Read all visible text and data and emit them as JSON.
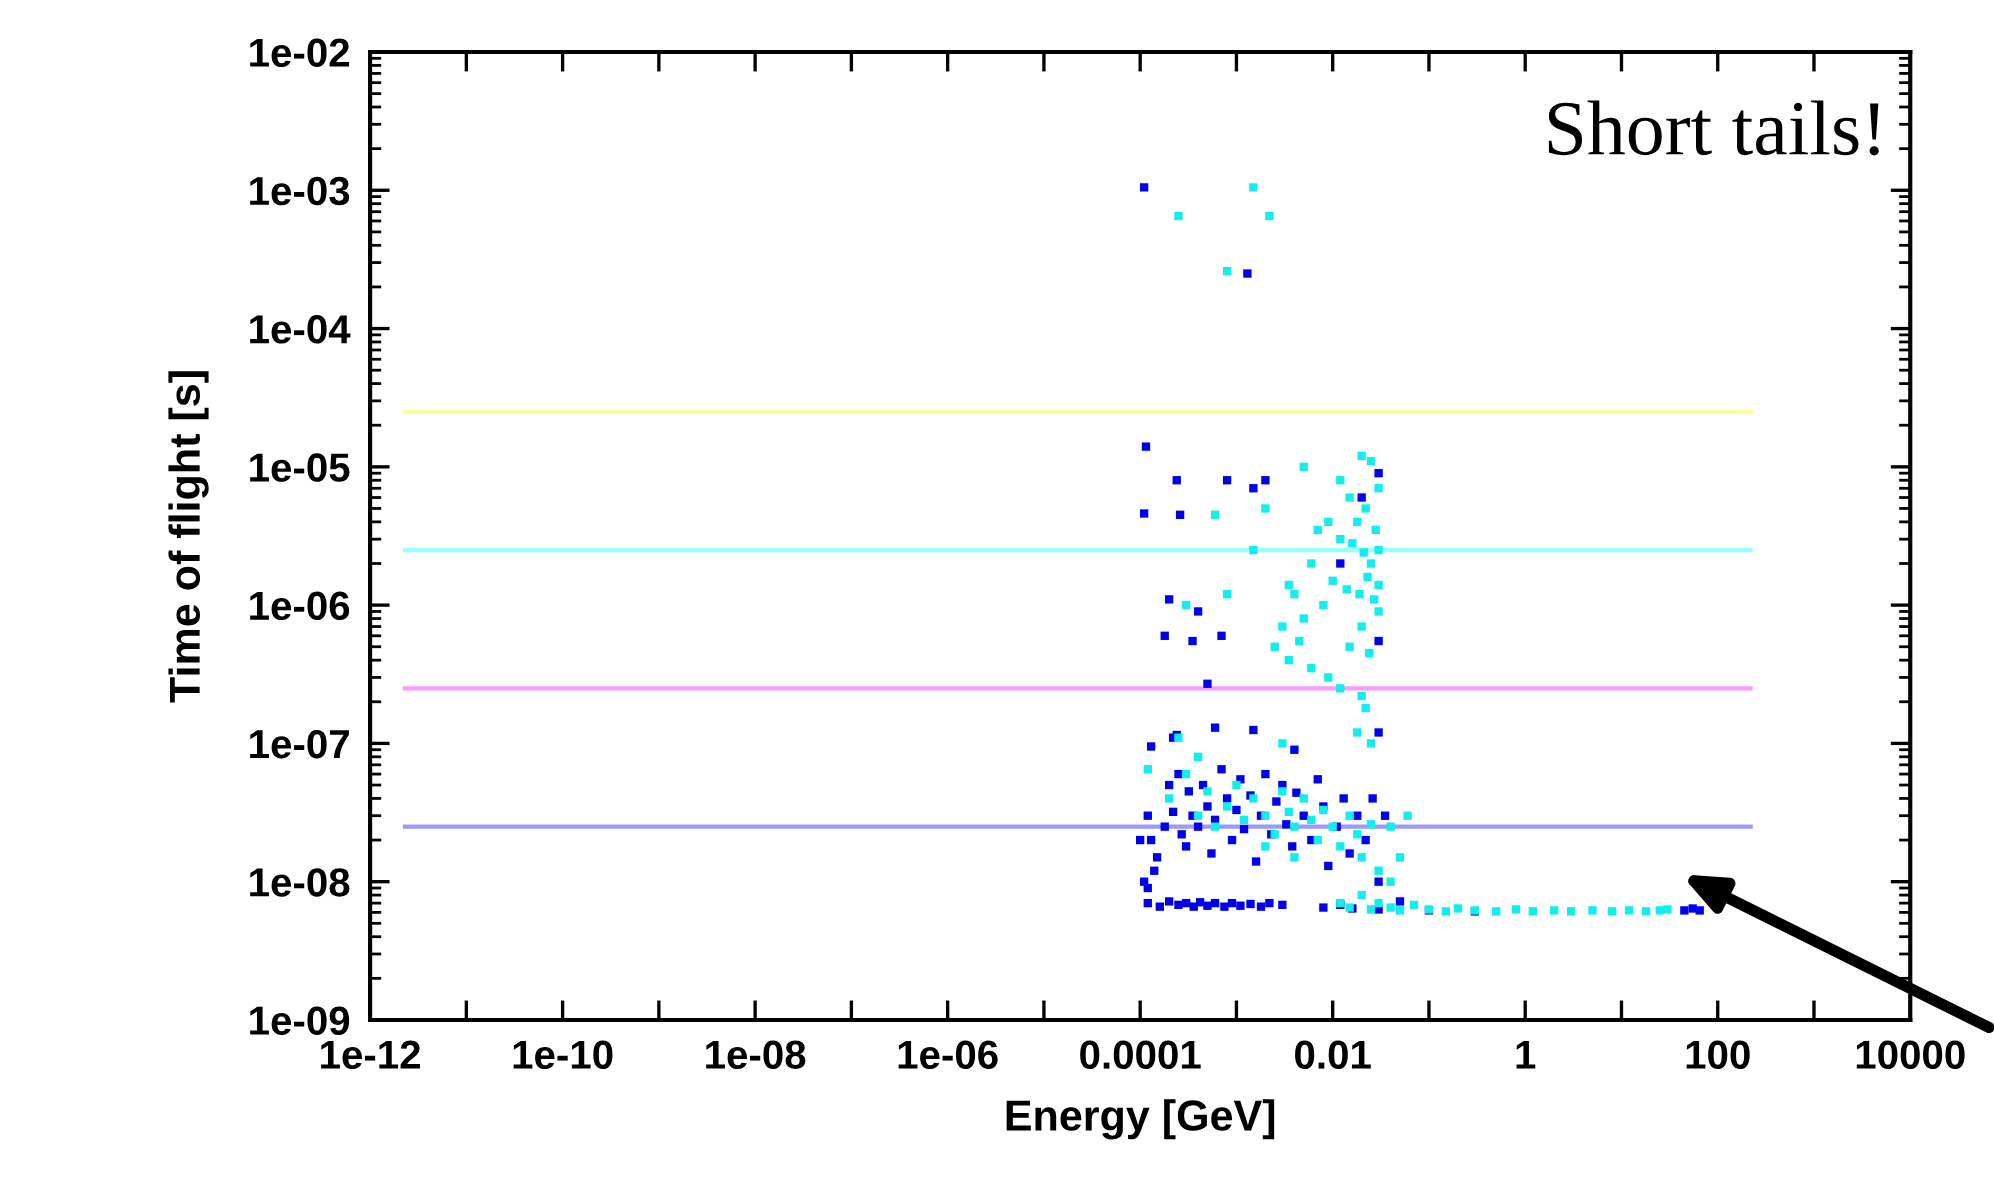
{
  "chart_data": {
    "type": "scatter",
    "xlabel": "Energy [GeV]",
    "ylabel": "Time of flight [s]",
    "log": "xy",
    "grid": false,
    "legend": false,
    "xlim": [
      1e-12,
      10000
    ],
    "ylim": [
      1e-09,
      0.01
    ],
    "xticks": [
      {
        "value": 1e-12,
        "label": "1e-12"
      },
      {
        "value": 1e-11,
        "label": null
      },
      {
        "value": 1e-10,
        "label": "1e-10"
      },
      {
        "value": 1e-09,
        "label": null
      },
      {
        "value": 1e-08,
        "label": "1e-08"
      },
      {
        "value": 1e-07,
        "label": null
      },
      {
        "value": 1e-06,
        "label": "1e-06"
      },
      {
        "value": 1e-05,
        "label": null
      },
      {
        "value": 0.0001,
        "label": "0.0001"
      },
      {
        "value": 0.001,
        "label": null
      },
      {
        "value": 0.01,
        "label": "0.01"
      },
      {
        "value": 0.1,
        "label": null
      },
      {
        "value": 1,
        "label": "1"
      },
      {
        "value": 10,
        "label": null
      },
      {
        "value": 100,
        "label": "100"
      },
      {
        "value": 1000,
        "label": null
      },
      {
        "value": 10000,
        "label": "10000"
      }
    ],
    "yticks": [
      {
        "value": 1e-09,
        "label": "1e-09"
      },
      {
        "value": 1e-08,
        "label": "1e-08"
      },
      {
        "value": 1e-07,
        "label": "1e-07"
      },
      {
        "value": 1e-06,
        "label": "1e-06"
      },
      {
        "value": 1e-05,
        "label": "1e-05"
      },
      {
        "value": 0.0001,
        "label": "1e-04"
      },
      {
        "value": 0.001,
        "label": "1e-03"
      },
      {
        "value": 0.01,
        "label": "1e-02"
      }
    ],
    "annotations": [
      "Short tails!"
    ],
    "series": [
      {
        "type": "line",
        "color": "#ffff99",
        "x": [
          2.3e-12,
          220
        ],
        "values": [
          2.5e-05,
          2.5e-05
        ]
      },
      {
        "type": "line",
        "color": "#99ffff",
        "x": [
          2.3e-12,
          220
        ],
        "values": [
          2.5e-06,
          2.5e-06
        ]
      },
      {
        "type": "line",
        "color": "#ff99ff",
        "x": [
          2.3e-12,
          220
        ],
        "values": [
          2.5e-07,
          2.5e-07
        ]
      },
      {
        "type": "line",
        "color": "#9999ff",
        "x": [
          2.3e-12,
          220
        ],
        "values": [
          2.5e-08,
          2.5e-08
        ]
      },
      {
        "marker": "square",
        "color": "#0000ee",
        "x": [
          0.00011,
          0.0013,
          0.000115,
          0.00011,
          0.00024,
          0.0008,
          0.002,
          0.00026,
          0.0015,
          0.0002,
          0.0004,
          0.00018,
          0.0007,
          0.00035,
          0.0005,
          0.012,
          0.03,
          0.03,
          0.03,
          0.02,
          0.00012,
          0.00013,
          0.00015,
          0.00011,
          0.00012,
          0.00014,
          0.00018,
          0.0002,
          0.00022,
          0.00025,
          0.00027,
          0.0003,
          0.00032,
          0.00035,
          0.0004,
          0.00045,
          0.0005,
          0.00055,
          0.0006,
          0.0007,
          0.0008,
          0.0009,
          0.001,
          0.0011,
          0.0012,
          0.0014,
          0.0016,
          0.0018,
          0.002,
          0.0023,
          0.0026,
          0.003,
          0.0033,
          0.0038,
          0.0042,
          0.005,
          0.006,
          0.007,
          0.008,
          0.009,
          0.011,
          0.013,
          0.015,
          0.018,
          0.022,
          0.026,
          0.03,
          0.035,
          0.00024,
          0.00022,
          0.00013,
          0.0006,
          0.0015,
          0.004,
          0.0001,
          0.00012,
          0.00016,
          0.0002,
          0.00025,
          0.0003,
          0.00036,
          0.00042,
          0.0005,
          0.0006,
          0.00075,
          0.0009,
          0.0011,
          0.0014,
          0.0018,
          0.0022,
          0.003,
          0.008,
          0.012,
          0.016,
          0.03,
          0.05,
          0.1,
          0.3,
          45,
          55,
          65
        ],
        "values": [
          0.00105,
          0.00025,
          1.4e-05,
          4.6e-06,
          8e-06,
          8e-06,
          8e-06,
          4.5e-06,
          7e-06,
          1.1e-06,
          9e-07,
          6e-07,
          6e-07,
          5.5e-07,
          2.7e-07,
          2e-06,
          9e-06,
          5.5e-07,
          1.2e-07,
          6e-06,
          3e-08,
          2e-08,
          1.5e-08,
          1e-08,
          9e-09,
          1.2e-08,
          2.5e-08,
          5e-08,
          3.2e-08,
          6e-08,
          2.2e-08,
          1.8e-08,
          4.5e-08,
          3e-08,
          2.5e-08,
          5e-08,
          3.5e-08,
          1.6e-08,
          2.8e-08,
          6.5e-08,
          4e-08,
          2e-08,
          3.3e-08,
          5.5e-08,
          2.4e-08,
          4.2e-08,
          1.4e-08,
          3e-08,
          6e-08,
          2.2e-08,
          3.8e-08,
          5e-08,
          2.6e-08,
          1.8e-08,
          4.4e-08,
          3e-08,
          2e-08,
          5.5e-08,
          3.5e-08,
          1.3e-08,
          2.5e-08,
          4e-08,
          1.6e-08,
          3e-08,
          2e-08,
          4e-08,
          1e-08,
          3e-08,
          1.15e-07,
          1.1e-07,
          9.5e-08,
          1.3e-07,
          1.25e-07,
          9e-08,
          2e-08,
          7e-09,
          6.6e-09,
          7.2e-09,
          6.8e-09,
          7e-09,
          6.6e-09,
          7.1e-09,
          6.7e-09,
          7e-09,
          6.6e-09,
          7e-09,
          6.7e-09,
          6.9e-09,
          6.6e-09,
          7e-09,
          6.8e-09,
          6.5e-09,
          6.8e-09,
          6.4e-09,
          6.3e-09,
          7.2e-09,
          6.2e-09,
          6.1e-09,
          6.2e-09,
          6.4e-09,
          6.2e-09
        ]
      },
      {
        "marker": "square",
        "color": "#11eeee",
        "x": [
          0.00025,
          0.0015,
          0.0022,
          0.0008,
          0.005,
          0.012,
          0.02,
          0.025,
          0.015,
          0.022,
          0.018,
          0.03,
          0.028,
          0.016,
          0.021,
          0.025,
          0.03,
          0.012,
          0.009,
          0.007,
          0.006,
          0.01,
          0.014,
          0.019,
          0.023,
          0.027,
          0.03,
          0.008,
          0.005,
          0.004,
          0.003,
          0.0025,
          0.0035,
          0.0045,
          0.006,
          0.009,
          0.012,
          0.015,
          0.02,
          0.024,
          0.03,
          0.02,
          0.022,
          0.018,
          0.025,
          0.002,
          0.0015,
          0.0035,
          0.0008,
          0.0003,
          0.0006,
          0.0002,
          0.0003,
          0.0004,
          0.0005,
          0.0006,
          0.0008,
          0.001,
          0.0012,
          0.0015,
          0.002,
          0.0025,
          0.003,
          0.0035,
          0.004,
          0.005,
          0.006,
          0.007,
          0.008,
          0.01,
          0.012,
          0.015,
          0.018,
          0.02,
          0.025,
          0.03,
          0.04,
          0.06,
          0.05,
          0.04,
          0.00025,
          0.0004,
          0.00012,
          0.003,
          0.002,
          0.004,
          0.012,
          0.015,
          0.02,
          0.025,
          0.03,
          0.04,
          0.05,
          0.07,
          0.1,
          0.15,
          0.2,
          0.3,
          0.5,
          0.8,
          1.2,
          2,
          3,
          5,
          8,
          12,
          18,
          25,
          30
        ],
        "values": [
          0.00065,
          0.00105,
          0.00065,
          0.00026,
          1e-05,
          8e-06,
          1.2e-05,
          1.1e-05,
          6e-06,
          5e-06,
          4e-06,
          7e-06,
          3.5e-06,
          2.8e-06,
          2.4e-06,
          2e-06,
          2.5e-06,
          3e-06,
          4e-06,
          3.5e-06,
          2e-06,
          1.5e-06,
          1.3e-06,
          1.2e-06,
          1.6e-06,
          1.1e-06,
          1.4e-06,
          1e-06,
          8e-07,
          1.2e-06,
          7e-07,
          5e-07,
          4e-07,
          5.5e-07,
          3.5e-07,
          3e-07,
          2.5e-07,
          5e-07,
          7e-07,
          4.5e-07,
          9e-07,
          2.2e-07,
          1.8e-07,
          1.2e-07,
          1e-07,
          5e-06,
          2.5e-06,
          1.4e-06,
          1.2e-06,
          1e-06,
          4.5e-06,
          4e-08,
          6e-08,
          3e-08,
          4.5e-08,
          2.5e-08,
          3.5e-08,
          5e-08,
          2.8e-08,
          4e-08,
          3e-08,
          2.2e-08,
          4.5e-08,
          3.2e-08,
          2.5e-08,
          4e-08,
          2.8e-08,
          2e-08,
          3.3e-08,
          2.5e-08,
          1.8e-08,
          3e-08,
          2.2e-08,
          1.5e-08,
          2.6e-08,
          1.2e-08,
          2.5e-08,
          3e-08,
          1.5e-08,
          1e-08,
          1.1e-07,
          8e-08,
          6.5e-08,
          1e-07,
          1.8e-08,
          1.5e-08,
          7e-09,
          6.5e-09,
          8e-09,
          6.3e-09,
          7e-09,
          6.5e-09,
          6.2e-09,
          6.8e-09,
          6.3e-09,
          6.1e-09,
          6.4e-09,
          6.2e-09,
          6.1e-09,
          6.3e-09,
          6.1e-09,
          6.2e-09,
          6.1e-09,
          6.2e-09,
          6.1e-09,
          6.2e-09,
          6.1e-09,
          6.2e-09,
          6.3e-09
        ]
      }
    ]
  }
}
